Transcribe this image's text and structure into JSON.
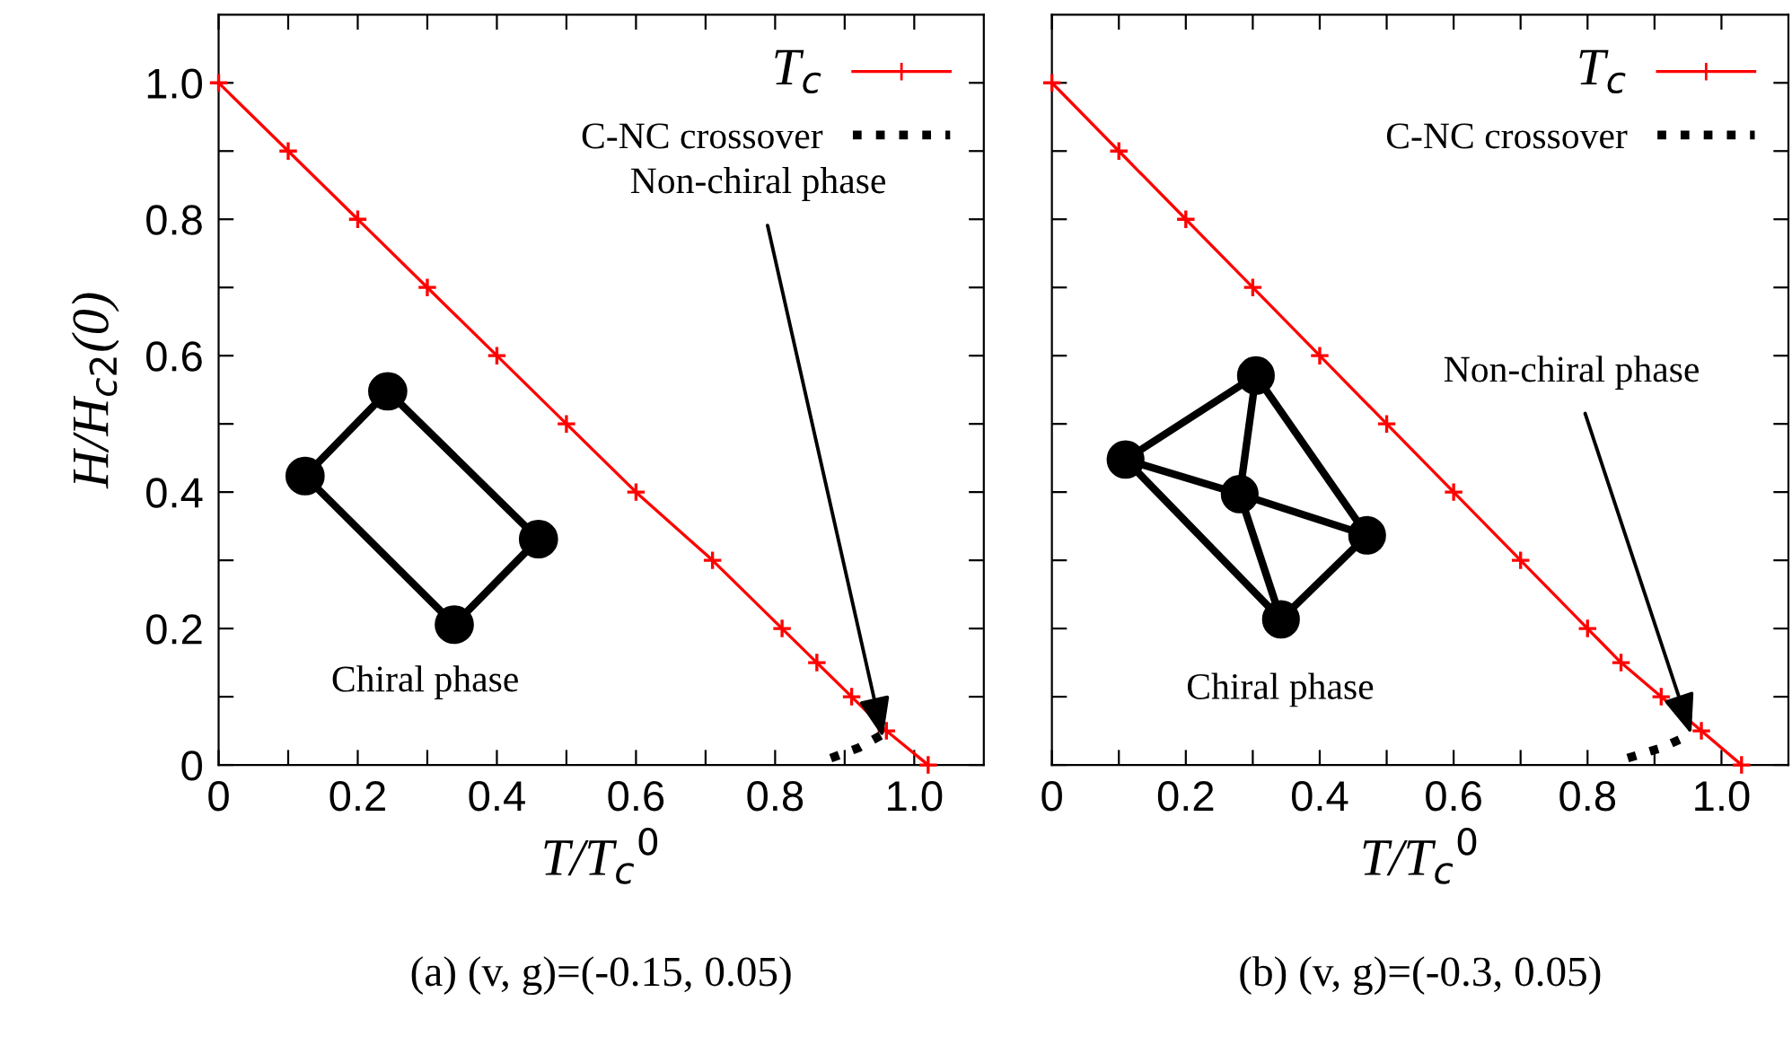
{
  "chart_data": [
    {
      "type": "line",
      "xlabel": "T/T$_{c}$$^{0}$",
      "ylabel": "H/H$_{c2}$(0)",
      "xlim": [
        0,
        1.1
      ],
      "ylim": [
        0,
        1.1
      ],
      "xticks": [
        0,
        {
          "value": 0.1,
          "label": null
        },
        0.2,
        {
          "value": 0.3,
          "label": null
        },
        0.4,
        {
          "value": 0.5,
          "label": null
        },
        0.6,
        {
          "value": 0.7,
          "label": null
        },
        0.8,
        {
          "value": 0.9,
          "label": null
        },
        {
          "value": 1.0,
          "label": "1.0"
        }
      ],
      "yticks": [
        0,
        {
          "value": 0.1,
          "label": null
        },
        0.2,
        {
          "value": 0.3,
          "label": null
        },
        0.4,
        {
          "value": 0.5,
          "label": null
        },
        0.6,
        {
          "value": 0.7,
          "label": null
        },
        0.8,
        {
          "value": 0.9,
          "label": null
        },
        {
          "value": 1.0,
          "label": "1.0"
        }
      ],
      "series": [
        {
          "name": "T$_{c}$",
          "color": "#ff0000",
          "marker": "cross",
          "line_style": "solid",
          "x": [
            0,
            0.1,
            0.2,
            0.3,
            0.4,
            0.5,
            0.6,
            0.71,
            0.81,
            0.86,
            0.91,
            0.96,
            1.02
          ],
          "values": [
            1.0,
            0.9,
            0.8,
            0.7,
            0.6,
            0.5,
            0.4,
            0.3,
            0.2,
            0.15,
            0.1,
            0.05,
            0
          ]
        },
        {
          "name": "C-NC crossover",
          "color": "#000000",
          "marker": "none",
          "line_style": "dotted",
          "x": [
            0.88,
            0.92,
            0.955
          ],
          "values": [
            0.01,
            0.025,
            0.045
          ]
        }
      ],
      "legend": "top right",
      "grid": false,
      "annotations": [
        {
          "text": "Non-chiral phase",
          "x": 0.955,
          "y": 0.04
        },
        "Chiral phase",
        "(a) (v, g)=(-0.15, 0.05)"
      ]
    },
    {
      "type": "line",
      "xlabel": "T/T$_{c}$$^{0}$",
      "xlim": [
        0,
        1.1
      ],
      "ylim": [
        0,
        1.1
      ],
      "tick_labels": "x",
      "xticks": [
        0,
        {
          "value": 0.1,
          "label": null
        },
        0.2,
        {
          "value": 0.3,
          "label": null
        },
        0.4,
        {
          "value": 0.5,
          "label": null
        },
        0.6,
        {
          "value": 0.7,
          "label": null
        },
        0.8,
        {
          "value": 0.9,
          "label": null
        },
        {
          "value": 1.0,
          "label": "1.0"
        }
      ],
      "yticks": [
        0,
        0.1,
        0.2,
        0.3,
        0.4,
        0.5,
        0.6,
        0.7,
        0.8,
        0.9,
        1.0
      ],
      "series": [
        {
          "name": "T$_{c}$",
          "color": "#ff0000",
          "marker": "cross",
          "line_style": "solid",
          "x": [
            0,
            0.1,
            0.2,
            0.3,
            0.4,
            0.5,
            0.6,
            0.7,
            0.8,
            0.85,
            0.91,
            0.97,
            1.03
          ],
          "values": [
            1.0,
            0.9,
            0.8,
            0.7,
            0.6,
            0.5,
            0.4,
            0.3,
            0.2,
            0.15,
            0.1,
            0.05,
            0
          ]
        },
        {
          "name": "C-NC crossover",
          "color": "#000000",
          "marker": "none",
          "line_style": "dotted",
          "x": [
            0.86,
            0.91,
            0.955
          ],
          "values": [
            0.01,
            0.025,
            0.045
          ]
        }
      ],
      "legend": "top right",
      "grid": false,
      "annotations": [
        {
          "text": "Non-chiral phase",
          "x": 0.955,
          "y": 0.045
        },
        "Chiral phase",
        "(b) (v, g)=(-0.3, 0.05)"
      ]
    }
  ]
}
